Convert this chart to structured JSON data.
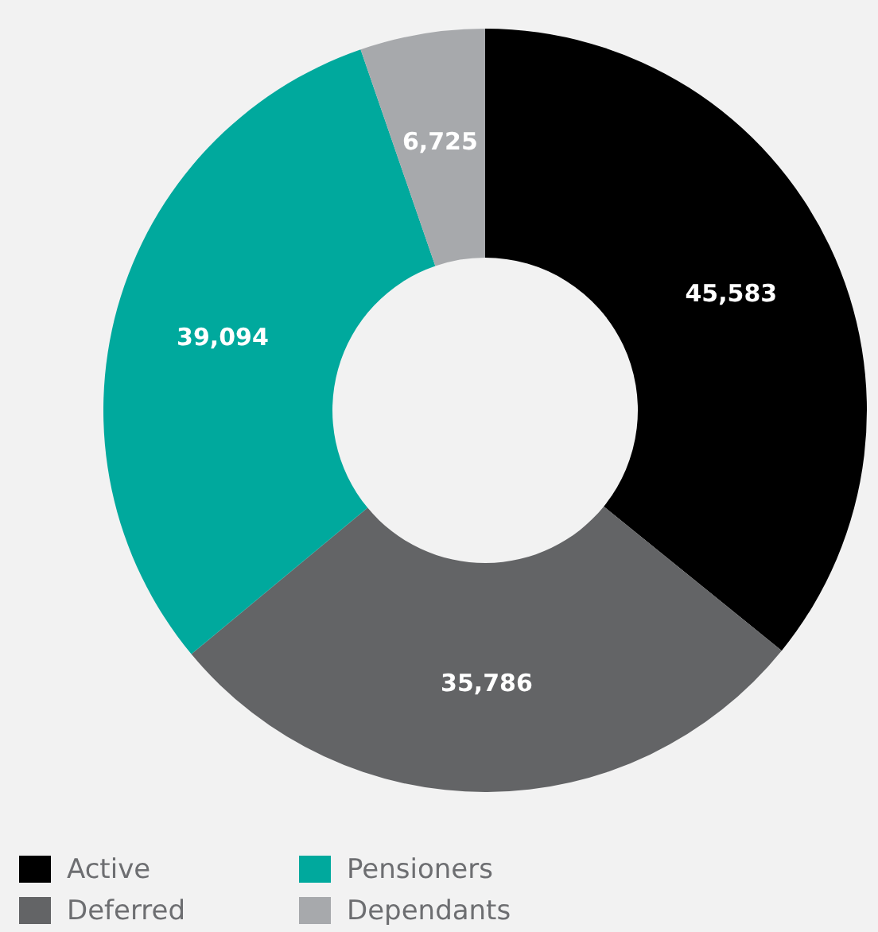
{
  "chart_data": {
    "type": "donut",
    "categories": [
      "Active",
      "Deferred",
      "Pensioners",
      "Dependants"
    ],
    "values": [
      45583,
      35786,
      39094,
      6725
    ],
    "colors": [
      "#000000",
      "#636466",
      "#00a99d",
      "#a7a9ac"
    ],
    "value_labels": [
      "45,583",
      "35,786",
      "39,094",
      "6,725"
    ],
    "legend": "bottom left"
  }
}
